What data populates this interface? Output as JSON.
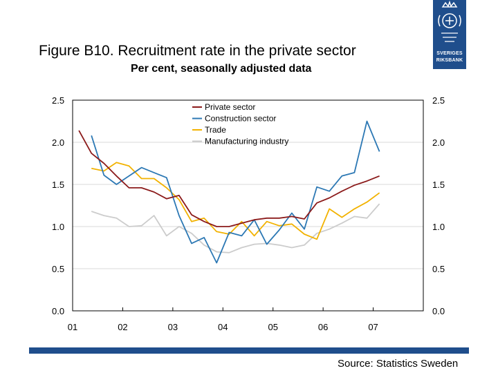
{
  "title": "Figure B10. Recruitment rate in the private sector",
  "subtitle": "Per cent, seasonally adjusted data",
  "source": "Source: Statistics Sweden",
  "logo": {
    "line1": "SVERIGES",
    "line2": "RIKSBANK",
    "color": "#1f4e8c"
  },
  "chart_data": {
    "type": "line",
    "title": "",
    "xlabel": "",
    "ylabel": "",
    "ylim": [
      0,
      2.5
    ],
    "xlim": [
      2001.0,
      2008.0
    ],
    "yticks": [
      "0.0",
      "0.5",
      "1.0",
      "1.5",
      "2.0",
      "2.5"
    ],
    "xticks": [
      {
        "label": "01",
        "x": 2001.0
      },
      {
        "label": "02",
        "x": 2002.0
      },
      {
        "label": "03",
        "x": 2003.0
      },
      {
        "label": "04",
        "x": 2004.0
      },
      {
        "label": "05",
        "x": 2005.0
      },
      {
        "label": "06",
        "x": 2006.0
      },
      {
        "label": "07",
        "x": 2007.0
      }
    ],
    "grid": {
      "horizontal": true,
      "vertical": false
    },
    "legend": "top-center",
    "x": [
      2001.125,
      2001.375,
      2001.625,
      2001.875,
      2002.125,
      2002.375,
      2002.625,
      2002.875,
      2003.125,
      2003.375,
      2003.625,
      2003.875,
      2004.125,
      2004.375,
      2004.625,
      2004.875,
      2005.125,
      2005.375,
      2005.625,
      2005.875,
      2006.125,
      2006.375,
      2006.625,
      2006.875,
      2007.125,
      2007.375
    ],
    "series": [
      {
        "name": "Private sector",
        "color": "#8b1a1a",
        "values": [
          2.14,
          1.87,
          1.75,
          1.6,
          1.46,
          1.46,
          1.41,
          1.33,
          1.37,
          1.14,
          1.06,
          1.0,
          1.0,
          1.04,
          1.08,
          1.1,
          1.1,
          1.12,
          1.09,
          1.28,
          1.34,
          1.42,
          1.49,
          1.54,
          1.6,
          null
        ]
      },
      {
        "name": "Construction sector",
        "color": "#2c78b4",
        "values": [
          null,
          2.08,
          1.61,
          1.5,
          1.6,
          1.7,
          1.64,
          1.58,
          1.13,
          0.8,
          0.87,
          0.57,
          0.93,
          0.89,
          1.08,
          0.79,
          0.96,
          1.16,
          0.97,
          1.47,
          1.42,
          1.6,
          1.64,
          2.25,
          1.89,
          null
        ]
      },
      {
        "name": "Trade",
        "color": "#f2b200",
        "values": [
          null,
          1.69,
          1.66,
          1.76,
          1.72,
          1.57,
          1.57,
          1.46,
          1.32,
          1.06,
          1.1,
          0.94,
          0.91,
          1.06,
          0.89,
          1.06,
          1.01,
          1.03,
          0.91,
          0.85,
          1.21,
          1.11,
          1.21,
          1.29,
          1.4,
          null
        ]
      },
      {
        "name": "Manufacturing industry",
        "color": "#cccccc",
        "values": [
          null,
          1.18,
          1.13,
          1.1,
          1.0,
          1.01,
          1.13,
          0.89,
          1.0,
          0.92,
          0.78,
          0.7,
          0.69,
          0.75,
          0.79,
          0.8,
          0.78,
          0.75,
          0.78,
          0.92,
          0.97,
          1.04,
          1.12,
          1.1,
          1.27,
          null
        ]
      }
    ]
  }
}
